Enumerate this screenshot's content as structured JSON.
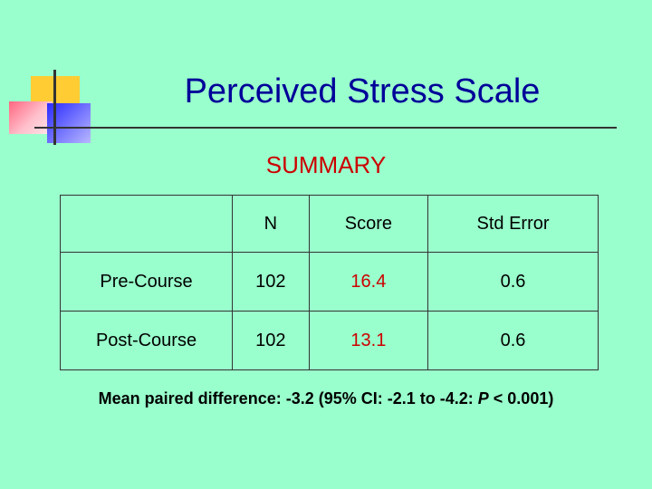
{
  "title": "Perceived Stress Scale",
  "subtitle": "SUMMARY",
  "table": {
    "headers": [
      "",
      "N",
      "Score",
      "Std Error"
    ],
    "rows": [
      {
        "label": "Pre-Course",
        "n": "102",
        "score": "16.4",
        "std_error": "0.6"
      },
      {
        "label": "Post-Course",
        "n": "102",
        "score": "13.1",
        "std_error": "0.6"
      }
    ]
  },
  "footnote": {
    "prefix": "Mean paired difference: -3.2 (95% CI: -2.1 to -4.2:  ",
    "p_label": "P",
    "suffix": " < 0.001)"
  },
  "colors": {
    "background": "#99ffcc",
    "title": "#000099",
    "subtitle": "#cc0000",
    "score": "#cc0000"
  },
  "logo": {
    "icon": "stacked-squares-logo-icon"
  }
}
